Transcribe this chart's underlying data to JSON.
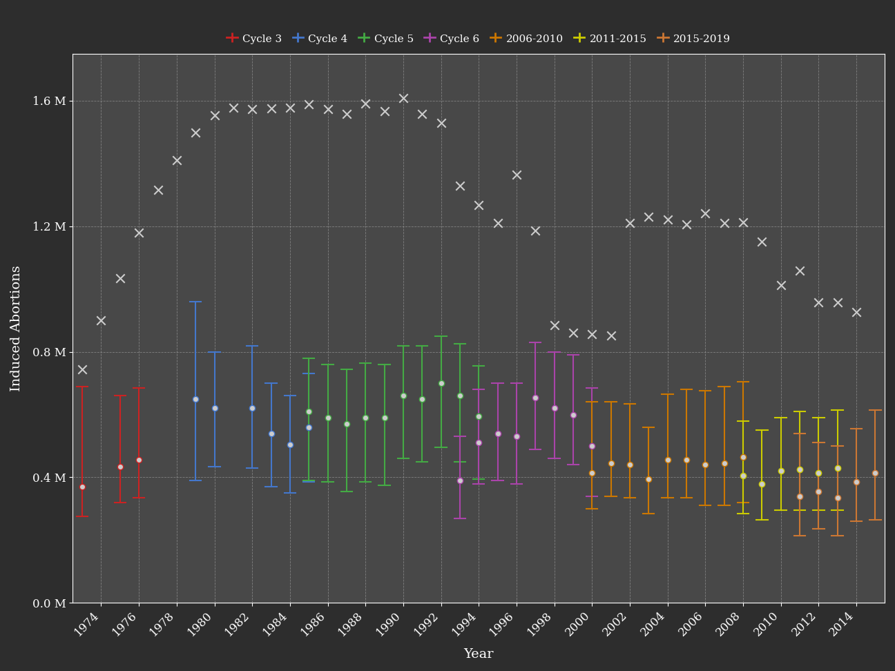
{
  "background_color": "#2d2d2d",
  "plot_bg_color": "#484848",
  "text_color": "#ffffff",
  "grid_color": "#888888",
  "title_fontsize": 13,
  "axis_label_fontsize": 14,
  "tick_fontsize": 12,
  "legend_fontsize": 11,
  "ylabel": "Induced Abortions",
  "xlabel": "Year",
  "ylim": [
    0,
    1750000
  ],
  "yticks": [
    0,
    400000,
    800000,
    1200000,
    1600000
  ],
  "ytick_labels": [
    "0.0 M",
    "0.4 M",
    "0.8 M",
    "1.2 M",
    "1.6 M"
  ],
  "guttmacher_x": [
    1973,
    1974,
    1975,
    1976,
    1977,
    1978,
    1979,
    1980,
    1981,
    1982,
    1983,
    1984,
    1985,
    1986,
    1987,
    1988,
    1989,
    1990,
    1991,
    1992,
    1993,
    1994,
    1995,
    1996,
    1997,
    1998,
    1999,
    2000,
    2001,
    2002,
    2003,
    2004,
    2005,
    2006,
    2007,
    2008,
    2009,
    2010,
    2011,
    2012,
    2013,
    2014
  ],
  "guttmacher_y": [
    745000,
    900000,
    1034000,
    1179000,
    1316000,
    1410000,
    1498000,
    1554000,
    1577000,
    1574000,
    1575000,
    1577000,
    1588000,
    1574000,
    1559000,
    1590000,
    1567000,
    1609000,
    1557000,
    1529000,
    1330000,
    1267000,
    1210000,
    1365000,
    1186000,
    884000,
    861000,
    857000,
    853000,
    1210000,
    1230000,
    1222000,
    1206000,
    1242000,
    1210000,
    1212000,
    1151000,
    1013000,
    1058000,
    958000,
    958000,
    926000
  ],
  "cycles": [
    {
      "name": "Cycle 3",
      "color": "#cc2222",
      "data": [
        {
          "year": 1973,
          "est": 370000,
          "lo": 275000,
          "hi": 690000
        },
        {
          "year": 1975,
          "est": 435000,
          "lo": 320000,
          "hi": 660000
        },
        {
          "year": 1976,
          "est": 455000,
          "lo": 335000,
          "hi": 685000
        }
      ]
    },
    {
      "name": "Cycle 4",
      "color": "#4477cc",
      "data": [
        {
          "year": 1979,
          "est": 650000,
          "lo": 390000,
          "hi": 960000
        },
        {
          "year": 1980,
          "est": 620000,
          "lo": 435000,
          "hi": 800000
        },
        {
          "year": 1982,
          "est": 620000,
          "lo": 430000,
          "hi": 820000
        },
        {
          "year": 1983,
          "est": 540000,
          "lo": 370000,
          "hi": 700000
        },
        {
          "year": 1984,
          "est": 505000,
          "lo": 350000,
          "hi": 660000
        },
        {
          "year": 1985,
          "est": 560000,
          "lo": 385000,
          "hi": 730000
        }
      ]
    },
    {
      "name": "Cycle 5",
      "color": "#44aa44",
      "data": [
        {
          "year": 1985,
          "est": 610000,
          "lo": 390000,
          "hi": 780000
        },
        {
          "year": 1986,
          "est": 590000,
          "lo": 385000,
          "hi": 760000
        },
        {
          "year": 1987,
          "est": 570000,
          "lo": 355000,
          "hi": 745000
        },
        {
          "year": 1988,
          "est": 590000,
          "lo": 385000,
          "hi": 765000
        },
        {
          "year": 1989,
          "est": 590000,
          "lo": 375000,
          "hi": 760000
        },
        {
          "year": 1990,
          "est": 660000,
          "lo": 460000,
          "hi": 820000
        },
        {
          "year": 1991,
          "est": 650000,
          "lo": 450000,
          "hi": 820000
        },
        {
          "year": 1992,
          "est": 700000,
          "lo": 495000,
          "hi": 850000
        },
        {
          "year": 1993,
          "est": 660000,
          "lo": 450000,
          "hi": 825000
        },
        {
          "year": 1994,
          "est": 595000,
          "lo": 395000,
          "hi": 755000
        }
      ]
    },
    {
      "name": "Cycle 6",
      "color": "#aa44aa",
      "data": [
        {
          "year": 1993,
          "est": 390000,
          "lo": 270000,
          "hi": 530000
        },
        {
          "year": 1994,
          "est": 510000,
          "lo": 380000,
          "hi": 680000
        },
        {
          "year": 1995,
          "est": 540000,
          "lo": 390000,
          "hi": 700000
        },
        {
          "year": 1996,
          "est": 530000,
          "lo": 380000,
          "hi": 700000
        },
        {
          "year": 1997,
          "est": 655000,
          "lo": 490000,
          "hi": 830000
        },
        {
          "year": 1998,
          "est": 620000,
          "lo": 460000,
          "hi": 800000
        },
        {
          "year": 1999,
          "est": 600000,
          "lo": 440000,
          "hi": 790000
        },
        {
          "year": 2000,
          "est": 500000,
          "lo": 340000,
          "hi": 685000
        }
      ]
    },
    {
      "name": "2006-2010",
      "color": "#cc7700",
      "data": [
        {
          "year": 2000,
          "est": 415000,
          "lo": 300000,
          "hi": 640000
        },
        {
          "year": 2001,
          "est": 445000,
          "lo": 340000,
          "hi": 640000
        },
        {
          "year": 2002,
          "est": 440000,
          "lo": 335000,
          "hi": 635000
        },
        {
          "year": 2003,
          "est": 395000,
          "lo": 285000,
          "hi": 560000
        },
        {
          "year": 2004,
          "est": 455000,
          "lo": 335000,
          "hi": 665000
        },
        {
          "year": 2005,
          "est": 455000,
          "lo": 335000,
          "hi": 680000
        },
        {
          "year": 2006,
          "est": 440000,
          "lo": 310000,
          "hi": 675000
        },
        {
          "year": 2007,
          "est": 445000,
          "lo": 310000,
          "hi": 690000
        },
        {
          "year": 2008,
          "est": 465000,
          "lo": 320000,
          "hi": 705000
        }
      ]
    },
    {
      "name": "2011-2015",
      "color": "#cccc00",
      "data": [
        {
          "year": 2008,
          "est": 405000,
          "lo": 285000,
          "hi": 580000
        },
        {
          "year": 2009,
          "est": 380000,
          "lo": 265000,
          "hi": 550000
        },
        {
          "year": 2010,
          "est": 420000,
          "lo": 295000,
          "hi": 590000
        },
        {
          "year": 2011,
          "est": 425000,
          "lo": 295000,
          "hi": 610000
        },
        {
          "year": 2012,
          "est": 415000,
          "lo": 295000,
          "hi": 590000
        },
        {
          "year": 2013,
          "est": 430000,
          "lo": 295000,
          "hi": 615000
        }
      ]
    },
    {
      "name": "2015-2019",
      "color": "#cc7733",
      "data": [
        {
          "year": 2011,
          "est": 340000,
          "lo": 215000,
          "hi": 540000
        },
        {
          "year": 2012,
          "est": 355000,
          "lo": 235000,
          "hi": 510000
        },
        {
          "year": 2013,
          "est": 335000,
          "lo": 215000,
          "hi": 500000
        },
        {
          "year": 2014,
          "est": 385000,
          "lo": 260000,
          "hi": 555000
        },
        {
          "year": 2015,
          "est": 415000,
          "lo": 265000,
          "hi": 615000
        }
      ]
    }
  ]
}
